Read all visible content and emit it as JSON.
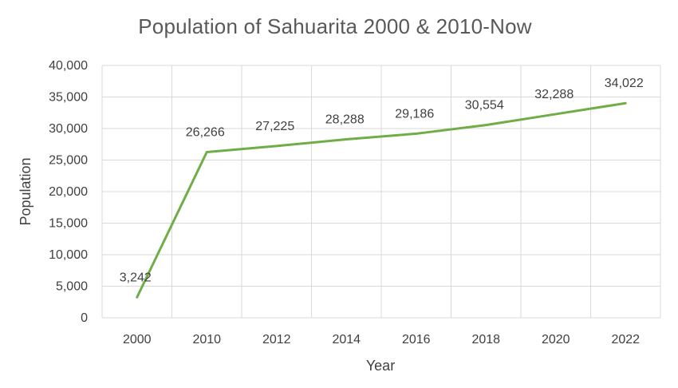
{
  "chart_data": {
    "type": "line",
    "title": "Population of Sahuarita 2000 & 2010-Now",
    "xlabel": "Year",
    "ylabel": "Population",
    "categories": [
      "2000",
      "2010",
      "2012",
      "2014",
      "2016",
      "2018",
      "2020",
      "2022"
    ],
    "series": [
      {
        "values": [
          3242,
          26266,
          27225,
          28288,
          29186,
          30554,
          32288,
          34022
        ],
        "data_labels": [
          "3,242",
          "26,266",
          "27,225",
          "28,288",
          "29,186",
          "30,554",
          "32,288",
          "34,022"
        ]
      }
    ],
    "ylim": [
      0,
      40000
    ],
    "y_ticks": [
      "0",
      "5,000",
      "10,000",
      "15,000",
      "20,000",
      "25,000",
      "30,000",
      "35,000",
      "40,000"
    ],
    "grid": true,
    "line_color": "#70ad47",
    "grid_color": "#d9d9d9"
  }
}
